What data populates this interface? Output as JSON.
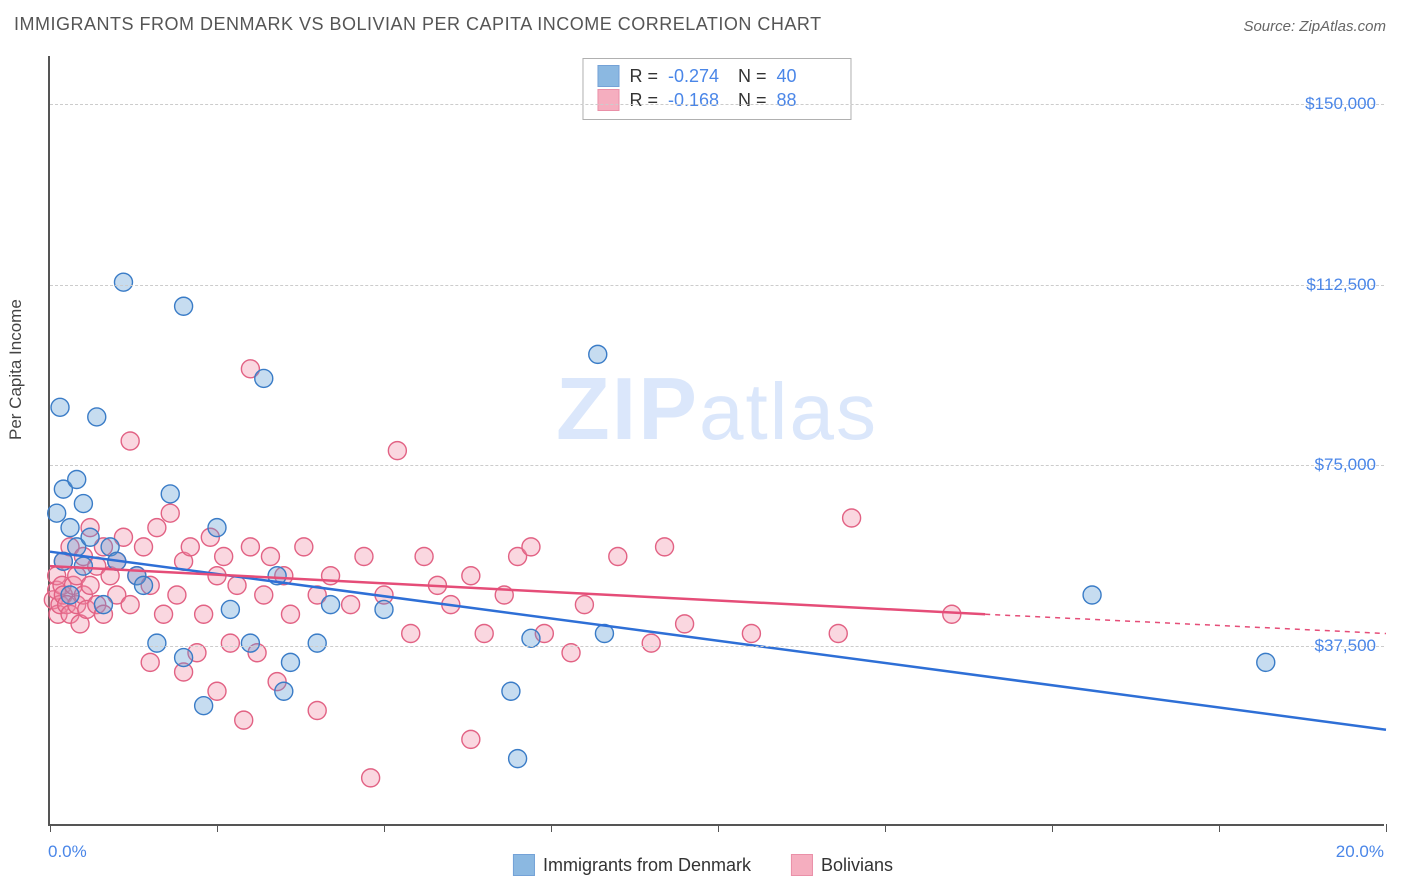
{
  "title": "IMMIGRANTS FROM DENMARK VS BOLIVIAN PER CAPITA INCOME CORRELATION CHART",
  "source": "Source: ZipAtlas.com",
  "ylabel": "Per Capita Income",
  "watermark_a": "ZIP",
  "watermark_b": "atlas",
  "chart": {
    "type": "scatter",
    "background_color": "#ffffff",
    "grid_color": "#cccccc",
    "axis_color": "#555555",
    "label_color": "#4a86e8",
    "xlim": [
      0,
      20
    ],
    "ylim": [
      0,
      160000
    ],
    "x_ticks_pct": [
      0,
      2.5,
      5,
      7.5,
      10,
      12.5,
      15,
      17.5,
      20
    ],
    "x_start_label": "0.0%",
    "x_end_label": "20.0%",
    "y_gridlines": [
      {
        "value": 37500,
        "label": "$37,500"
      },
      {
        "value": 75000,
        "label": "$75,000"
      },
      {
        "value": 112500,
        "label": "$112,500"
      },
      {
        "value": 150000,
        "label": "$150,000"
      }
    ],
    "marker_radius": 9,
    "marker_fill_opacity": 0.35,
    "marker_stroke_width": 1.4,
    "trend_stroke_width": 2.5
  },
  "series": [
    {
      "key": "denmark",
      "label": "Immigrants from Denmark",
      "color": "#5b9bd5",
      "stroke": "#3a7cc7",
      "trend_color": "#2e6fd6",
      "R": "-0.274",
      "N": "40",
      "trend": {
        "x1": 0,
        "y1": 57000,
        "x2": 20,
        "y2": 20000,
        "dash_from_x": 20
      },
      "points": [
        [
          0.1,
          65000
        ],
        [
          0.15,
          87000
        ],
        [
          0.2,
          55000
        ],
        [
          0.2,
          70000
        ],
        [
          0.3,
          62000
        ],
        [
          0.3,
          48000
        ],
        [
          0.4,
          72000
        ],
        [
          0.4,
          58000
        ],
        [
          0.5,
          54000
        ],
        [
          0.5,
          67000
        ],
        [
          0.6,
          60000
        ],
        [
          0.7,
          85000
        ],
        [
          0.8,
          46000
        ],
        [
          0.9,
          58000
        ],
        [
          1.0,
          55000
        ],
        [
          1.1,
          113000
        ],
        [
          1.3,
          52000
        ],
        [
          1.4,
          50000
        ],
        [
          1.6,
          38000
        ],
        [
          1.8,
          69000
        ],
        [
          2.0,
          108000
        ],
        [
          2.0,
          35000
        ],
        [
          2.3,
          25000
        ],
        [
          2.5,
          62000
        ],
        [
          2.7,
          45000
        ],
        [
          3.0,
          38000
        ],
        [
          3.2,
          93000
        ],
        [
          3.4,
          52000
        ],
        [
          3.5,
          28000
        ],
        [
          3.6,
          34000
        ],
        [
          4.0,
          38000
        ],
        [
          4.2,
          46000
        ],
        [
          5.0,
          45000
        ],
        [
          6.9,
          28000
        ],
        [
          7.0,
          14000
        ],
        [
          7.2,
          39000
        ],
        [
          8.2,
          98000
        ],
        [
          8.3,
          40000
        ],
        [
          15.6,
          48000
        ],
        [
          18.2,
          34000
        ]
      ]
    },
    {
      "key": "bolivians",
      "label": "Bolivians",
      "color": "#f28ca5",
      "stroke": "#e26284",
      "trend_color": "#e54d78",
      "R": "-0.168",
      "N": "88",
      "trend": {
        "x1": 0,
        "y1": 54000,
        "x2": 14,
        "y2": 44000,
        "dash_from_x": 14,
        "dash_x2": 20,
        "dash_y2": 40000
      },
      "points": [
        [
          0.05,
          47000
        ],
        [
          0.1,
          49000
        ],
        [
          0.1,
          52000
        ],
        [
          0.12,
          44000
        ],
        [
          0.15,
          46000
        ],
        [
          0.18,
          50000
        ],
        [
          0.2,
          48000
        ],
        [
          0.2,
          55000
        ],
        [
          0.25,
          46000
        ],
        [
          0.3,
          44000
        ],
        [
          0.3,
          58000
        ],
        [
          0.35,
          50000
        ],
        [
          0.4,
          46000
        ],
        [
          0.4,
          52000
        ],
        [
          0.45,
          42000
        ],
        [
          0.5,
          56000
        ],
        [
          0.5,
          48000
        ],
        [
          0.55,
          45000
        ],
        [
          0.6,
          62000
        ],
        [
          0.6,
          50000
        ],
        [
          0.7,
          46000
        ],
        [
          0.7,
          54000
        ],
        [
          0.8,
          58000
        ],
        [
          0.8,
          44000
        ],
        [
          0.9,
          52000
        ],
        [
          1.0,
          55000
        ],
        [
          1.0,
          48000
        ],
        [
          1.1,
          60000
        ],
        [
          1.2,
          46000
        ],
        [
          1.2,
          80000
        ],
        [
          1.3,
          52000
        ],
        [
          1.4,
          58000
        ],
        [
          1.5,
          34000
        ],
        [
          1.5,
          50000
        ],
        [
          1.6,
          62000
        ],
        [
          1.7,
          44000
        ],
        [
          1.8,
          65000
        ],
        [
          1.9,
          48000
        ],
        [
          2.0,
          55000
        ],
        [
          2.0,
          32000
        ],
        [
          2.1,
          58000
        ],
        [
          2.2,
          36000
        ],
        [
          2.3,
          44000
        ],
        [
          2.4,
          60000
        ],
        [
          2.5,
          52000
        ],
        [
          2.5,
          28000
        ],
        [
          2.6,
          56000
        ],
        [
          2.7,
          38000
        ],
        [
          2.8,
          50000
        ],
        [
          2.9,
          22000
        ],
        [
          3.0,
          58000
        ],
        [
          3.0,
          95000
        ],
        [
          3.1,
          36000
        ],
        [
          3.2,
          48000
        ],
        [
          3.3,
          56000
        ],
        [
          3.4,
          30000
        ],
        [
          3.5,
          52000
        ],
        [
          3.6,
          44000
        ],
        [
          3.8,
          58000
        ],
        [
          4.0,
          48000
        ],
        [
          4.0,
          24000
        ],
        [
          4.2,
          52000
        ],
        [
          4.5,
          46000
        ],
        [
          4.7,
          56000
        ],
        [
          4.8,
          10000
        ],
        [
          5.0,
          48000
        ],
        [
          5.2,
          78000
        ],
        [
          5.4,
          40000
        ],
        [
          5.6,
          56000
        ],
        [
          5.8,
          50000
        ],
        [
          6.0,
          46000
        ],
        [
          6.3,
          52000
        ],
        [
          6.3,
          18000
        ],
        [
          6.5,
          40000
        ],
        [
          6.8,
          48000
        ],
        [
          7.0,
          56000
        ],
        [
          7.2,
          58000
        ],
        [
          7.4,
          40000
        ],
        [
          7.8,
          36000
        ],
        [
          8.0,
          46000
        ],
        [
          8.5,
          56000
        ],
        [
          9.0,
          38000
        ],
        [
          9.2,
          58000
        ],
        [
          9.5,
          42000
        ],
        [
          10.5,
          40000
        ],
        [
          11.8,
          40000
        ],
        [
          12.0,
          64000
        ],
        [
          13.5,
          44000
        ]
      ]
    }
  ],
  "stats_box": {
    "R_label": "R =",
    "N_label": "N ="
  }
}
